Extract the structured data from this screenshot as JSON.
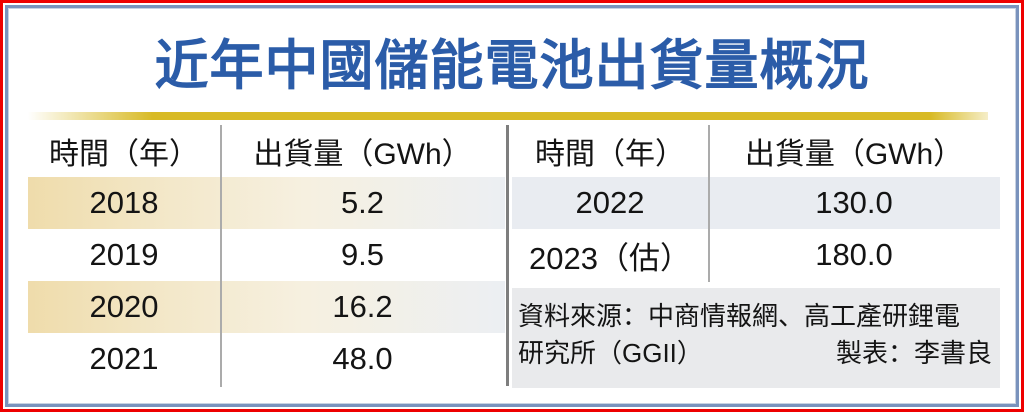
{
  "title": "近年中國儲能電池出貨量概況",
  "colors": {
    "frame_red": "#ee0000",
    "frame_blue": "#7a93bd",
    "title_blue": "#2b5ca8",
    "gold_bar": "#d8ba25",
    "tan_row": "#efdcab",
    "bluegray_row": "#e9ecf1",
    "source_bg": "#e9eaec"
  },
  "chart_data": {
    "type": "table",
    "title": "近年中國儲能電池出貨量概況",
    "categories": [
      "2018",
      "2019",
      "2020",
      "2021",
      "2022",
      "2023（估）"
    ],
    "values": [
      5.2,
      9.5,
      16.2,
      48.0,
      130.0,
      180.0
    ],
    "xlabel": "時間（年）",
    "ylabel": "出貨量（GWh）"
  },
  "left_table": {
    "columns": [
      "時間（年）",
      "出貨量（GWh）"
    ],
    "rows": [
      {
        "year": "2018",
        "value": "5.2"
      },
      {
        "year": "2019",
        "value": "9.5"
      },
      {
        "year": "2020",
        "value": "16.2"
      },
      {
        "year": "2021",
        "value": "48.0"
      }
    ]
  },
  "right_table": {
    "columns": [
      "時間（年）",
      "出貨量（GWh）"
    ],
    "rows": [
      {
        "year": "2022",
        "value": "130.0"
      },
      {
        "year": "2023（估）",
        "value": "180.0"
      }
    ]
  },
  "source": {
    "line1": "資料來源：中商情報網、高工產研鋰電",
    "line2_left": "研究所（GGII）",
    "line2_right": "製表：李書良"
  }
}
